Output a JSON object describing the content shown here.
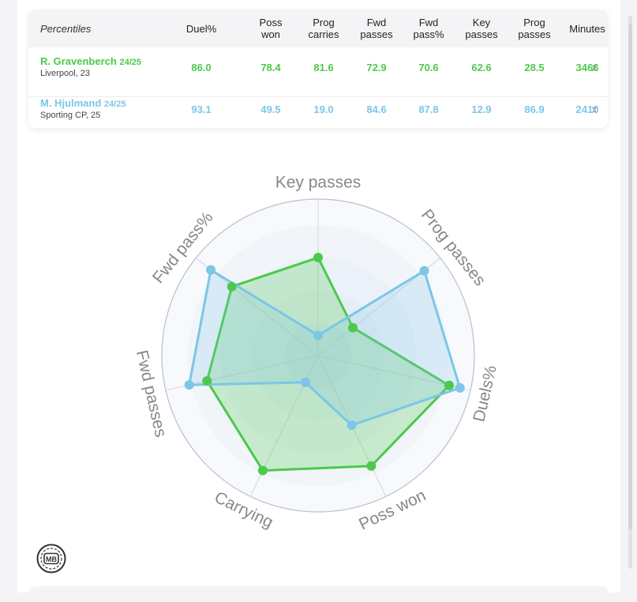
{
  "table": {
    "header_first": "Percentiles",
    "columns": [
      {
        "key": "duel",
        "lines": [
          "Duel%"
        ]
      },
      {
        "key": "poss_won",
        "lines": [
          "Poss",
          "won"
        ]
      },
      {
        "key": "prog_carries",
        "lines": [
          "Prog",
          "carries"
        ]
      },
      {
        "key": "fwd_passes",
        "lines": [
          "Fwd",
          "passes"
        ]
      },
      {
        "key": "fwd_pass_pct",
        "lines": [
          "Fwd",
          "pass%"
        ]
      },
      {
        "key": "key_passes",
        "lines": [
          "Key",
          "passes"
        ]
      },
      {
        "key": "prog_passes",
        "lines": [
          "Prog",
          "passes"
        ]
      },
      {
        "key": "minutes",
        "lines": [
          "Minutes"
        ]
      }
    ],
    "remove_label": "x",
    "players": [
      {
        "name": "R. Gravenberch",
        "season": "24/25",
        "team": "Liverpool, 23",
        "color": "#4cc94c",
        "values": [
          "86.0",
          "78.4",
          "81.6",
          "72.9",
          "70.6",
          "62.6",
          "28.5",
          "3466"
        ]
      },
      {
        "name": "M. Hjulmand",
        "season": "24/25",
        "team": "Sporting CP, 25",
        "color": "#7cc6e6",
        "values": [
          "93.1",
          "49.5",
          "19.0",
          "84.6",
          "87.8",
          "12.9",
          "86.9",
          "2410"
        ]
      }
    ]
  },
  "chart_data": {
    "type": "radar",
    "axes": [
      "Key passes",
      "Prog passes",
      "Duels%",
      "Poss won",
      "Carrying",
      "Fwd passes",
      "Fwd pass%"
    ],
    "range": [
      0,
      100
    ],
    "series": [
      {
        "name": "R. Gravenberch",
        "color": "#4cc94c",
        "values": [
          62.6,
          28.5,
          86.0,
          78.4,
          81.6,
          72.9,
          70.6
        ]
      },
      {
        "name": "M. Hjulmand",
        "color": "#7cc6e6",
        "values": [
          12.9,
          86.9,
          93.1,
          49.5,
          19.0,
          84.6,
          87.8
        ]
      }
    ]
  },
  "logo": {
    "text": "MB"
  }
}
